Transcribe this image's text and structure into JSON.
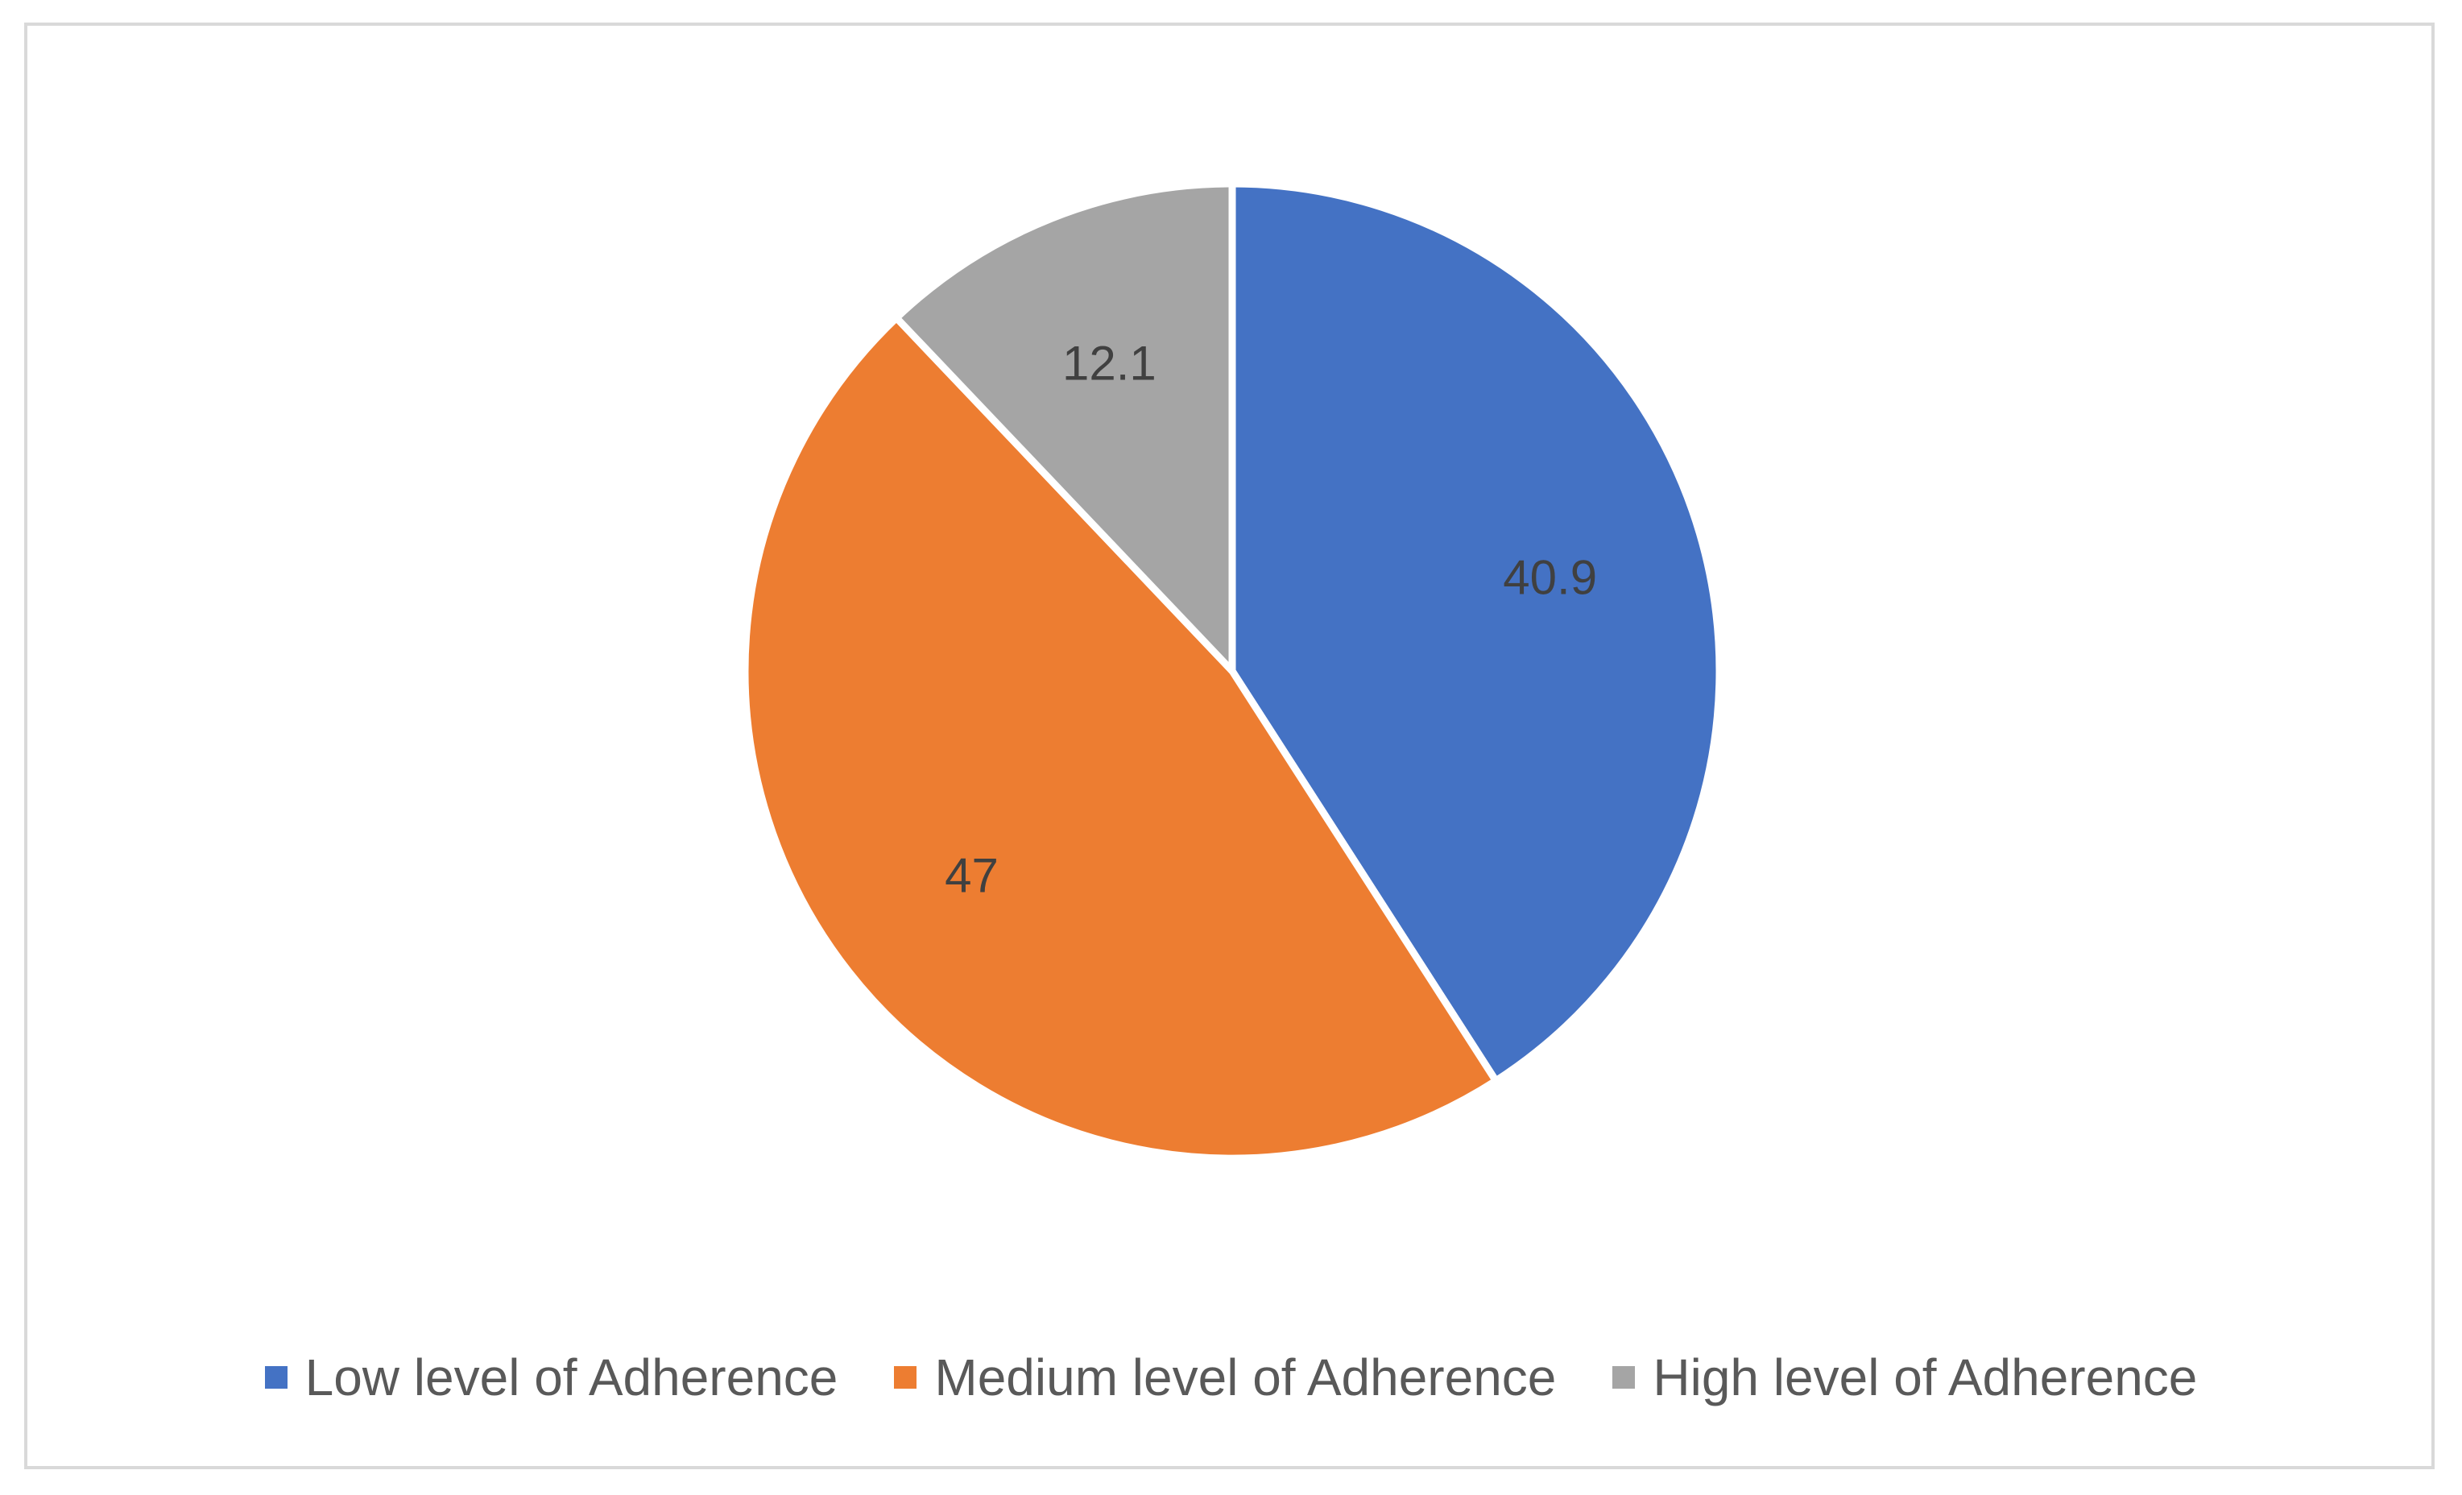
{
  "chart_data": {
    "type": "pie",
    "categories": [
      "Low level of Adherence",
      "Medium level of Adherence",
      "High level of Adherence"
    ],
    "values": [
      40.9,
      47,
      12.1
    ],
    "data_labels": [
      "40.9",
      "47",
      "12.1"
    ],
    "colors": [
      "#4472c4",
      "#ed7d31",
      "#a5a5a5"
    ],
    "start_angle_deg": 0,
    "direction": "clockwise",
    "legend_position": "bottom"
  }
}
